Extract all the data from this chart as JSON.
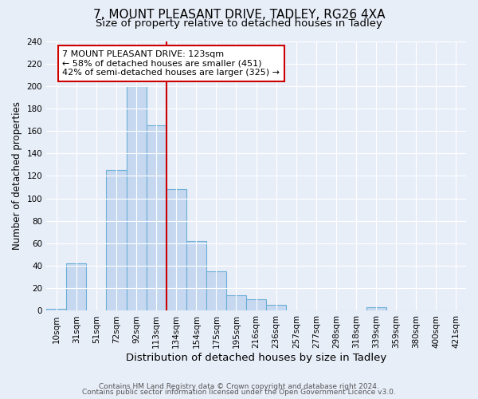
{
  "title": "7, MOUNT PLEASANT DRIVE, TADLEY, RG26 4XA",
  "subtitle": "Size of property relative to detached houses in Tadley",
  "xlabel": "Distribution of detached houses by size in Tadley",
  "ylabel": "Number of detached properties",
  "bin_labels": [
    "10sqm",
    "31sqm",
    "51sqm",
    "72sqm",
    "92sqm",
    "113sqm",
    "134sqm",
    "154sqm",
    "175sqm",
    "195sqm",
    "216sqm",
    "236sqm",
    "257sqm",
    "277sqm",
    "298sqm",
    "318sqm",
    "339sqm",
    "359sqm",
    "380sqm",
    "400sqm",
    "421sqm"
  ],
  "bar_values": [
    2,
    42,
    0,
    125,
    200,
    165,
    108,
    62,
    35,
    14,
    10,
    5,
    0,
    0,
    0,
    0,
    3,
    0,
    0,
    0,
    0
  ],
  "bar_color": "#c5d8f0",
  "bar_edge_color": "#6baed6",
  "vline_x": 5.5,
  "vline_color": "#cc0000",
  "annotation_text": "7 MOUNT PLEASANT DRIVE: 123sqm\n← 58% of detached houses are smaller (451)\n42% of semi-detached houses are larger (325) →",
  "annotation_box_color": "white",
  "annotation_box_edge_color": "#cc0000",
  "ylim": [
    0,
    240
  ],
  "yticks": [
    0,
    20,
    40,
    60,
    80,
    100,
    120,
    140,
    160,
    180,
    200,
    220,
    240
  ],
  "footer1": "Contains HM Land Registry data © Crown copyright and database right 2024.",
  "footer2": "Contains public sector information licensed under the Open Government Licence v3.0.",
  "title_fontsize": 11,
  "subtitle_fontsize": 9.5,
  "xlabel_fontsize": 9.5,
  "ylabel_fontsize": 8.5,
  "tick_fontsize": 7.5,
  "footer_fontsize": 6.5,
  "annotation_fontsize": 8,
  "background_color": "#e8eef8"
}
